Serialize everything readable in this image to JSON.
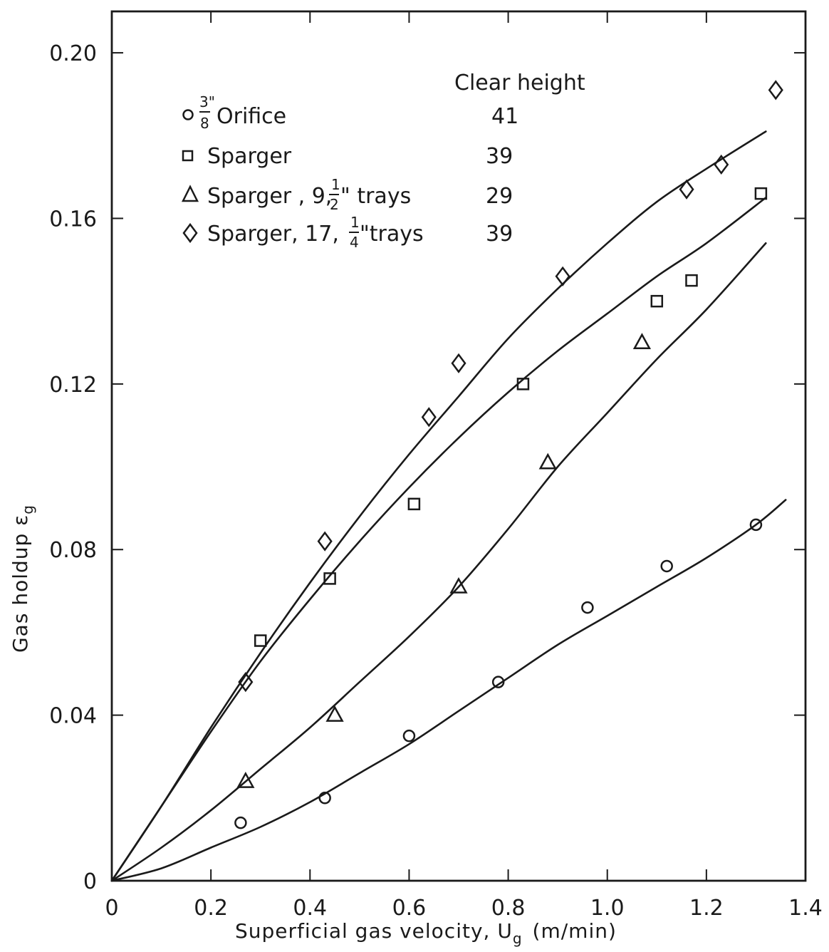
{
  "chart_data": {
    "type": "scatter",
    "xlabel": "Superficial gas velocity, U",
    "xlabel_subscript": "g",
    "xlabel_units": "(m/min)",
    "ylabel": "Gas holdup ε",
    "ylabel_subscript": "g",
    "xlim": [
      0,
      1.4
    ],
    "ylim": [
      0,
      0.21
    ],
    "x_ticks": [
      0,
      0.2,
      0.4,
      0.6,
      0.8,
      1.0,
      1.2,
      1.4
    ],
    "x_tick_labels": [
      "0",
      "0.2",
      "0.4",
      "0.6",
      "0.8",
      "1.0",
      "1.2",
      "1.4"
    ],
    "y_ticks": [
      0,
      0.04,
      0.08,
      0.12,
      0.16,
      0.2
    ],
    "y_tick_labels": [
      "0",
      "0.04",
      "0.08",
      "0.12",
      "0.16",
      "0.20"
    ],
    "grid": false,
    "legend": {
      "placement": "top-left",
      "column_header": "Clear height",
      "entries": [
        {
          "marker": "circle",
          "label_prefix_fraction": [
            "3\"",
            "8"
          ],
          "label": "Orifice",
          "value": "41"
        },
        {
          "marker": "square",
          "label": "Sparger",
          "value": "39"
        },
        {
          "marker": "triangle",
          "label": "Sparger , 9,",
          "label_fraction": [
            "1",
            "2"
          ],
          "label_suffix": "\" trays",
          "value": "29"
        },
        {
          "marker": "diamond",
          "label": "Sparger, 17,",
          "label_fraction": [
            "1",
            "4"
          ],
          "label_suffix": "\"trays",
          "value": "39"
        }
      ]
    },
    "series": [
      {
        "marker": "circle",
        "x": [
          0.26,
          0.43,
          0.6,
          0.78,
          0.96,
          1.12,
          1.3
        ],
        "y": [
          0.014,
          0.02,
          0.035,
          0.048,
          0.066,
          0.076,
          0.086
        ],
        "fit_x": [
          0,
          0.1,
          0.2,
          0.3,
          0.4,
          0.5,
          0.6,
          0.7,
          0.8,
          0.9,
          1.0,
          1.1,
          1.2,
          1.3,
          1.36
        ],
        "fit_y": [
          0,
          0.003,
          0.008,
          0.013,
          0.019,
          0.026,
          0.033,
          0.041,
          0.049,
          0.057,
          0.064,
          0.071,
          0.078,
          0.086,
          0.092
        ]
      },
      {
        "marker": "square",
        "x": [
          0.3,
          0.44,
          0.61,
          0.83,
          1.1,
          1.17,
          1.31
        ],
        "y": [
          0.058,
          0.073,
          0.091,
          0.12,
          0.14,
          0.145,
          0.166
        ],
        "fit_x": [
          0,
          0.1,
          0.2,
          0.3,
          0.4,
          0.5,
          0.6,
          0.7,
          0.8,
          0.9,
          1.0,
          1.1,
          1.2,
          1.32
        ],
        "fit_y": [
          0,
          0.018,
          0.036,
          0.053,
          0.068,
          0.082,
          0.095,
          0.107,
          0.118,
          0.128,
          0.137,
          0.146,
          0.154,
          0.165
        ]
      },
      {
        "marker": "triangle",
        "x": [
          0.27,
          0.45,
          0.7,
          0.88,
          1.07
        ],
        "y": [
          0.024,
          0.04,
          0.071,
          0.101,
          0.13
        ],
        "fit_x": [
          0,
          0.1,
          0.2,
          0.3,
          0.4,
          0.5,
          0.6,
          0.7,
          0.8,
          0.9,
          1.0,
          1.1,
          1.2,
          1.32
        ],
        "fit_y": [
          0,
          0.008,
          0.017,
          0.027,
          0.037,
          0.048,
          0.059,
          0.071,
          0.085,
          0.1,
          0.113,
          0.126,
          0.138,
          0.154
        ]
      },
      {
        "marker": "diamond",
        "x": [
          0.27,
          0.43,
          0.64,
          0.7,
          0.91,
          1.16,
          1.23,
          1.34
        ],
        "y": [
          0.048,
          0.082,
          0.112,
          0.125,
          0.146,
          0.167,
          0.173,
          0.191
        ],
        "fit_x": [
          0,
          0.1,
          0.2,
          0.3,
          0.4,
          0.5,
          0.6,
          0.7,
          0.8,
          0.9,
          1.0,
          1.1,
          1.2,
          1.32
        ],
        "fit_y": [
          0,
          0.018,
          0.037,
          0.055,
          0.072,
          0.088,
          0.103,
          0.117,
          0.131,
          0.143,
          0.154,
          0.164,
          0.172,
          0.181
        ]
      }
    ]
  }
}
